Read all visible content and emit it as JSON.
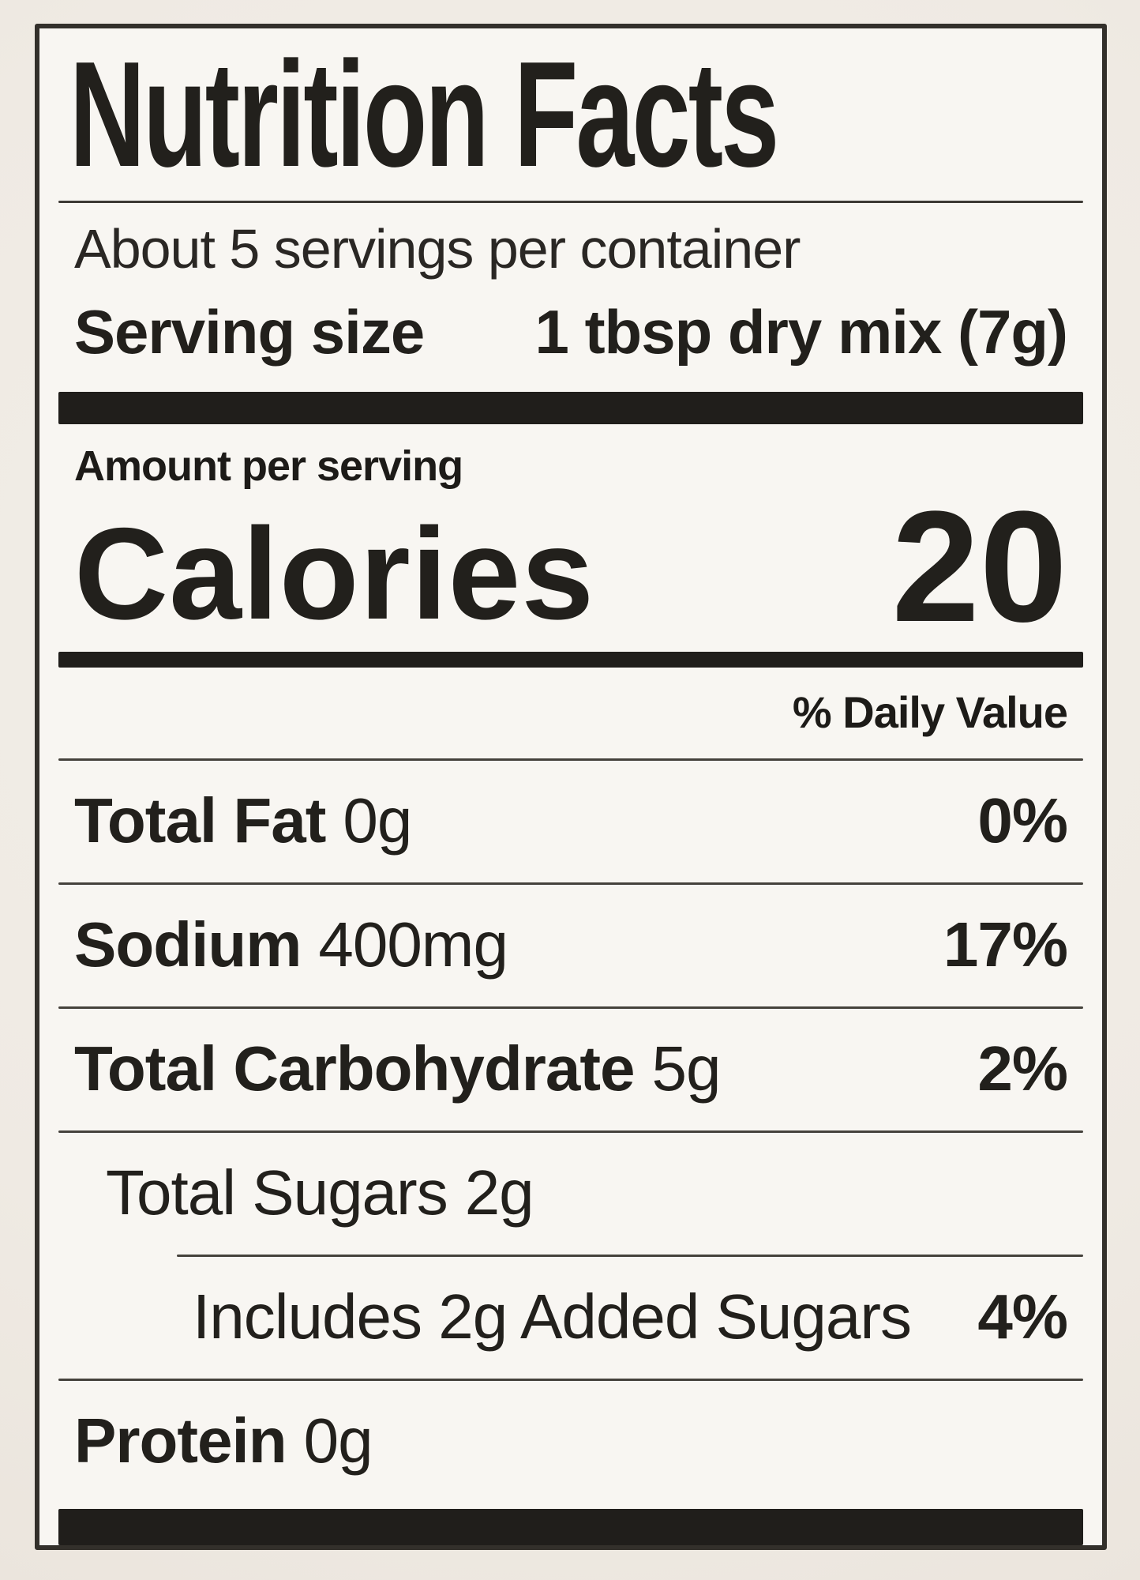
{
  "label": {
    "title": "Nutrition Facts",
    "servings_per_container": "About 5 servings per container",
    "serving_size_label": "Serving size",
    "serving_size_value": "1 tbsp dry mix (7g)",
    "amount_per_serving": "Amount per serving",
    "calories_label": "Calories",
    "calories_value": "20",
    "daily_value_header": "% Daily Value",
    "rows": [
      {
        "name": "Total Fat",
        "amount": "0g",
        "dv": "0%"
      },
      {
        "name": "Sodium",
        "amount": "400mg",
        "dv": "17%"
      },
      {
        "name": "Total Carbohydrate",
        "amount": "5g",
        "dv": "2%"
      },
      {
        "name": "Total Sugars",
        "amount": "2g",
        "dv": ""
      },
      {
        "name": "Includes 2g Added Sugars",
        "amount": "",
        "dv": "4%"
      },
      {
        "name": "Protein",
        "amount": "0g",
        "dv": ""
      }
    ]
  },
  "colors": {
    "ink": "#201e1b",
    "label_background": "#f8f6f2",
    "photo_background": "#efeae3"
  }
}
